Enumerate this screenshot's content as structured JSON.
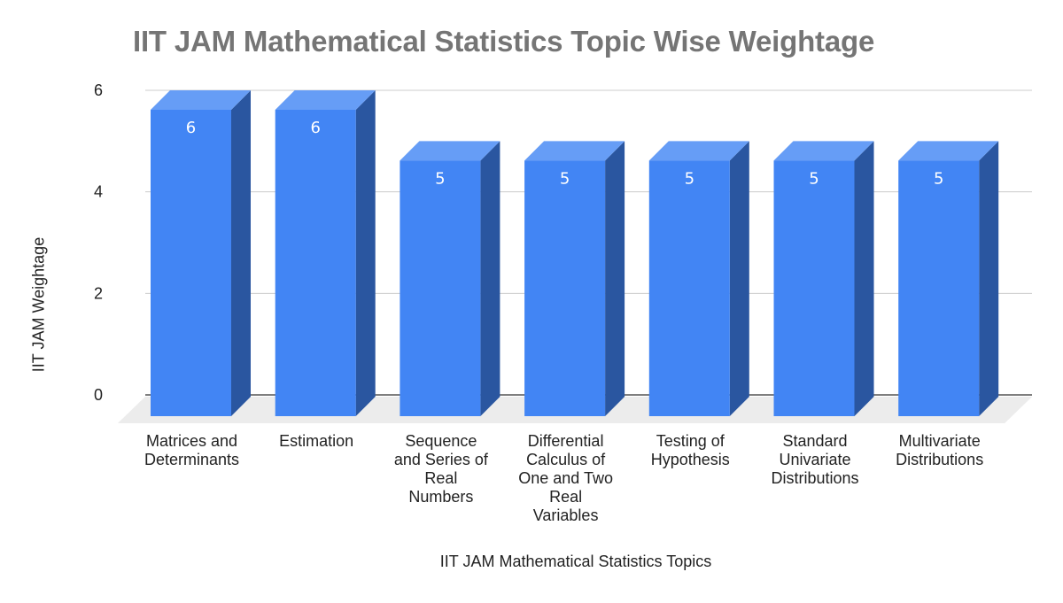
{
  "chart_data": {
    "type": "bar",
    "style": "3d",
    "title": "IIT JAM Mathematical Statistics Topic Wise Weightage",
    "xlabel": "IIT JAM Mathematical Statistics Topics",
    "ylabel": "IIT JAM Weightage",
    "ylim": [
      0,
      6
    ],
    "yticks": [
      0,
      2,
      4,
      6
    ],
    "grid": true,
    "legend": "none",
    "data_labels": true,
    "categories": [
      "Matrices and Determinants",
      "Estimation",
      "Sequence and Series of Real Numbers",
      "Differential Calculus of One and Two Real Variables",
      "Testing of Hypothesis",
      "Standard Univariate Distributions",
      "Multivariate Distributions"
    ],
    "values": [
      6,
      6,
      5,
      5,
      5,
      5,
      5
    ],
    "colors": {
      "front": "#4285f4",
      "side": "#2a56a0",
      "top": "#669df6",
      "floor": "#ececec",
      "grid": "#cccccc",
      "axis": "#333333"
    }
  },
  "labels": {
    "cat_lines": [
      [
        "Matrices and",
        "Determinants"
      ],
      [
        "Estimation"
      ],
      [
        "Sequence",
        "and Series of",
        "Real",
        "Numbers"
      ],
      [
        "Differential",
        "Calculus of",
        "One and Two",
        "Real",
        "Variables"
      ],
      [
        "Testing of",
        "Hypothesis"
      ],
      [
        "Standard",
        "Univariate",
        "Distributions"
      ],
      [
        "Multivariate",
        "Distributions"
      ]
    ]
  }
}
